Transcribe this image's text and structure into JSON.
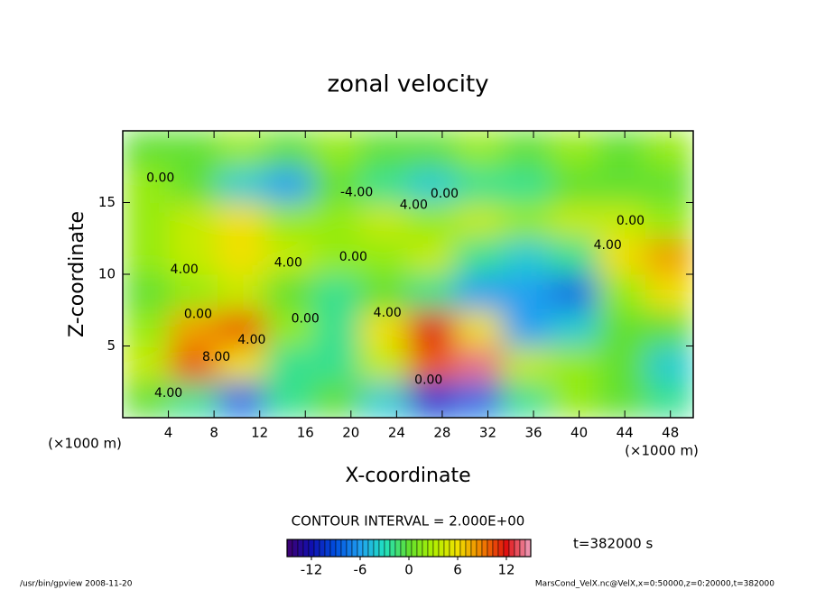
{
  "chart_data": {
    "type": "contour",
    "title": "zonal velocity",
    "x_label": "X-coordinate",
    "y_label": "Z-coordinate",
    "x_unit": "(×1000 m)",
    "y_unit": "(×1000 m)",
    "xlim": [
      0,
      50
    ],
    "ylim": [
      0,
      20
    ],
    "xticks": [
      4,
      8,
      12,
      16,
      20,
      24,
      28,
      32,
      36,
      40,
      44,
      48
    ],
    "yticks": [
      5,
      10,
      15
    ],
    "values": [
      [
        0,
        -2,
        -8,
        -2,
        0,
        -4,
        -10,
        -8,
        -2,
        2,
        0,
        -2
      ],
      [
        4,
        10,
        6,
        -2,
        -2,
        4,
        10,
        14,
        4,
        2,
        0,
        -4
      ],
      [
        2,
        8,
        10,
        2,
        -2,
        6,
        12,
        6,
        -6,
        -4,
        0,
        0
      ],
      [
        0,
        2,
        4,
        0,
        -2,
        0,
        -2,
        -6,
        -6,
        -8,
        2,
        6
      ],
      [
        2,
        4,
        6,
        4,
        2,
        2,
        4,
        -2,
        -4,
        -2,
        6,
        8
      ],
      [
        2,
        4,
        6,
        2,
        2,
        4,
        2,
        4,
        2,
        4,
        4,
        2
      ],
      [
        2,
        0,
        -4,
        -6,
        0,
        -2,
        -4,
        -2,
        -2,
        0,
        0,
        0
      ],
      [
        0,
        0,
        2,
        0,
        2,
        0,
        0,
        2,
        0,
        2,
        0,
        2
      ]
    ],
    "contour_labels": [
      {
        "text": "0.00",
        "x": 3.3,
        "z": 16.7
      },
      {
        "text": "-4.00",
        "x": 20.5,
        "z": 15.7
      },
      {
        "text": "0.00",
        "x": 28.2,
        "z": 15.6
      },
      {
        "text": "4.00",
        "x": 25.5,
        "z": 14.8
      },
      {
        "text": "0.00",
        "x": 44.5,
        "z": 13.7
      },
      {
        "text": "4.00",
        "x": 42.5,
        "z": 12.0
      },
      {
        "text": "4.00",
        "x": 5.4,
        "z": 10.3
      },
      {
        "text": "4.00",
        "x": 14.5,
        "z": 10.8
      },
      {
        "text": "0.00",
        "x": 20.2,
        "z": 11.2
      },
      {
        "text": "0.00",
        "x": 6.6,
        "z": 7.2
      },
      {
        "text": "8.00",
        "x": 8.2,
        "z": 4.2
      },
      {
        "text": "4.00",
        "x": 11.3,
        "z": 5.4
      },
      {
        "text": "0.00",
        "x": 16.0,
        "z": 6.9
      },
      {
        "text": "4.00",
        "x": 23.2,
        "z": 7.3
      },
      {
        "text": "0.00",
        "x": 26.8,
        "z": 2.6
      },
      {
        "text": "4.00",
        "x": 4.0,
        "z": 1.7
      }
    ],
    "contour_interval_label": "CONTOUR INTERVAL = 2.000E+00",
    "time_label": "t=382000 s",
    "clim": [
      -15,
      15
    ],
    "cticks": [
      -12,
      -6,
      0,
      6,
      12
    ],
    "colormap": [
      "#400070",
      "#1010b0",
      "#0050e0",
      "#20a0f0",
      "#20e0c0",
      "#60e030",
      "#b0f000",
      "#f0e000",
      "#f08000",
      "#e01010",
      "#f0a0c0"
    ],
    "footer_left": "/usr/bin/gpview  2008-11-20",
    "footer_right": "MarsCond_VelX.nc@VelX,x=0:50000,z=0:20000,t=382000"
  }
}
